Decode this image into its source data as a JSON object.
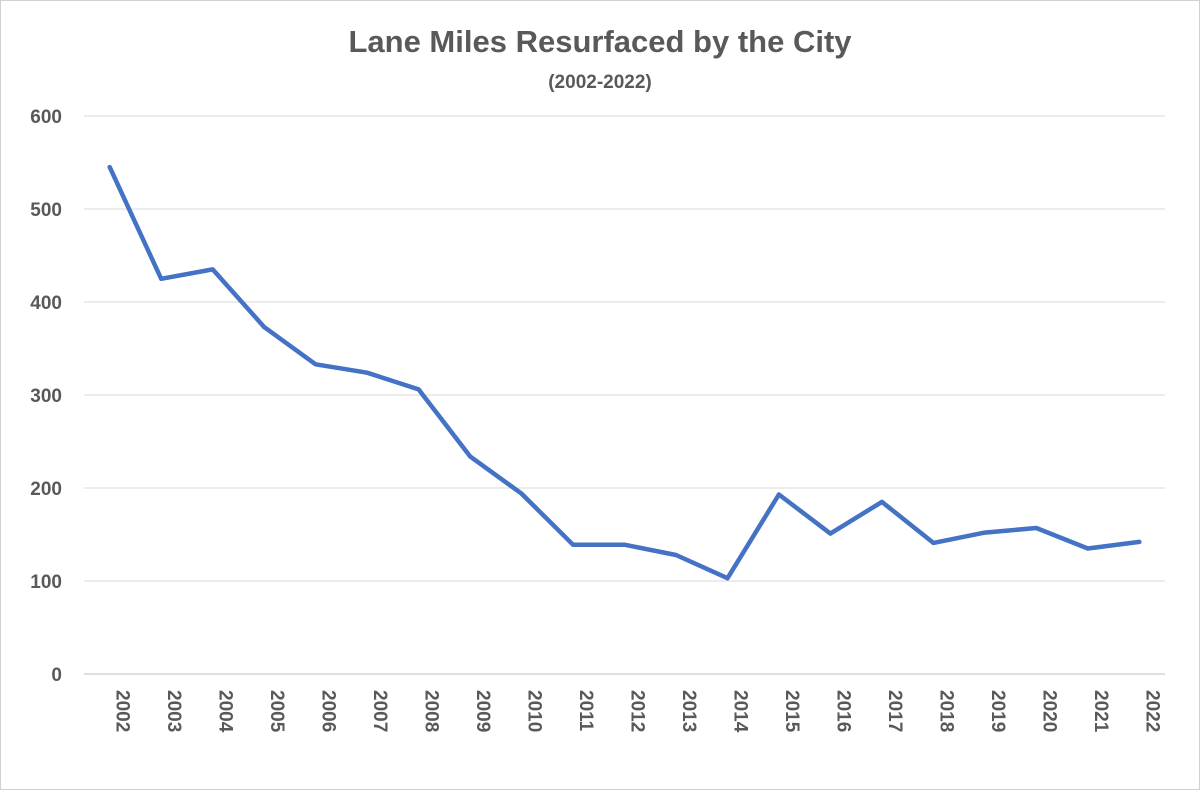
{
  "chart_data": {
    "type": "line",
    "title": "Lane Miles Resurfaced by the City",
    "subtitle": "(2002-2022)",
    "xlabel": "",
    "ylabel": "",
    "categories": [
      "2002",
      "2003",
      "2004",
      "2005",
      "2006",
      "2007",
      "2008",
      "2009",
      "2010",
      "2011",
      "2012",
      "2013",
      "2014",
      "2015",
      "2016",
      "2017",
      "2018",
      "2019",
      "2020",
      "2021",
      "2022"
    ],
    "series": [
      {
        "name": "Lane Miles Resurfaced",
        "color": "#4472c4",
        "values": [
          545,
          425,
          435,
          373,
          333,
          324,
          306,
          234,
          194,
          139,
          139,
          128,
          103,
          193,
          151,
          185,
          141,
          152,
          157,
          135,
          142
        ]
      }
    ],
    "yticks": [
      0,
      100,
      200,
      300,
      400,
      500,
      600
    ],
    "ylim": [
      0,
      600
    ],
    "grid": true,
    "legend": "none"
  }
}
